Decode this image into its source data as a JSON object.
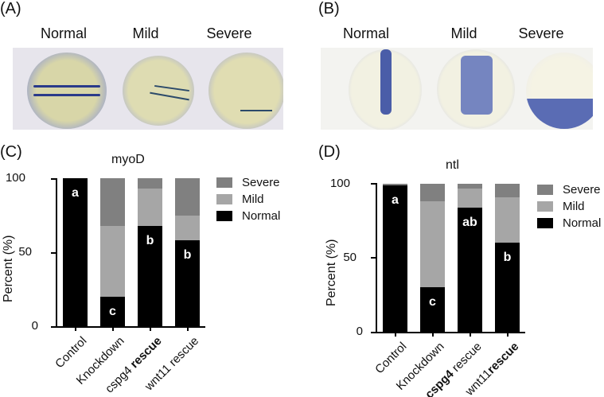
{
  "panels": {
    "A": {
      "label": "(A)",
      "images": [
        "Normal",
        "Mild",
        "Severe"
      ]
    },
    "B": {
      "label": "(B)",
      "images": [
        "Normal",
        "Mild",
        "Severe"
      ]
    },
    "C": {
      "label": "(C)"
    },
    "D": {
      "label": "(D)"
    }
  },
  "colors": {
    "severe": "#808080",
    "mild": "#a6a6a6",
    "normal": "#000000"
  },
  "chart_data": [
    {
      "type": "bar",
      "stacked": true,
      "title": "myoD",
      "ylabel": "Percent (%)",
      "xlabel": "",
      "ylim": [
        0,
        100
      ],
      "yticks": [
        0,
        50,
        100
      ],
      "categories": [
        "Control",
        "Knockdown",
        "cspg4 rescue",
        "wnt11 rescue"
      ],
      "series": [
        {
          "name": "Normal",
          "values": [
            100,
            20,
            68,
            58
          ]
        },
        {
          "name": "Mild",
          "values": [
            0,
            48,
            25,
            17
          ]
        },
        {
          "name": "Severe",
          "values": [
            0,
            32,
            7,
            25
          ]
        }
      ],
      "annotations": [
        "a",
        "c",
        "b",
        "b"
      ],
      "legend": [
        "Severe",
        "Mild",
        "Normal"
      ],
      "legend_position": "right"
    },
    {
      "type": "bar",
      "stacked": true,
      "title": "ntl",
      "ylabel": "Percent (%)",
      "xlabel": "",
      "ylim": [
        0,
        100
      ],
      "yticks": [
        0,
        50,
        100
      ],
      "categories": [
        "Control",
        "Knockdown",
        "cspg4 rescue",
        "wnt11rescue"
      ],
      "series": [
        {
          "name": "Normal",
          "values": [
            99,
            30,
            84,
            60
          ]
        },
        {
          "name": "Mild",
          "values": [
            0,
            58,
            13,
            31
          ]
        },
        {
          "name": "Severe",
          "values": [
            1,
            12,
            3,
            9
          ]
        }
      ],
      "annotations": [
        "a",
        "c",
        "ab",
        "b"
      ],
      "legend": [
        "Severe",
        "Mild",
        "Normal"
      ],
      "legend_position": "right"
    }
  ],
  "xlabels_C": [
    {
      "plain": "Control",
      "bold": ""
    },
    {
      "plain": "Knockdown",
      "bold": ""
    },
    {
      "plain": "cspg4 ",
      "bold": "rescue"
    },
    {
      "plain": "wnt11 rescue",
      "bold": ""
    }
  ],
  "xlabels_D": [
    {
      "plain": "Control",
      "bold": "",
      "boldfirst": false
    },
    {
      "plain": "Knockdown",
      "bold": "",
      "boldfirst": false
    },
    {
      "plain": " rescue",
      "bold": "cspg4",
      "boldfirst": true
    },
    {
      "plain": "wnt11",
      "bold": "rescue",
      "boldfirst": false
    }
  ]
}
